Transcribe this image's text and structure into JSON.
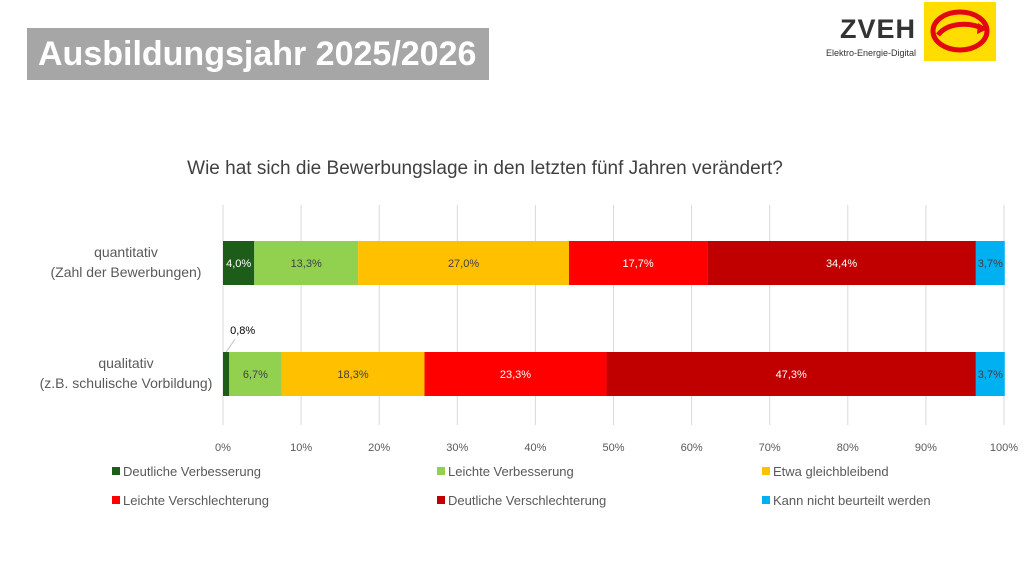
{
  "slide": {
    "title": "Ausbildungsjahr 2025/2026"
  },
  "logo": {
    "name": "ZVEH",
    "tagline": "Elektro-Energie-Digital",
    "accent": "#e30613",
    "background": "#ffdd00"
  },
  "chart_data": {
    "type": "stacked-bar-horizontal",
    "title": "Wie hat sich die Bewerbungslage in den letzten fünf Jahren verändert?",
    "xlim": [
      0,
      100
    ],
    "x_ticks": [
      "0%",
      "10%",
      "20%",
      "30%",
      "40%",
      "50%",
      "60%",
      "70%",
      "80%",
      "90%",
      "100%"
    ],
    "grid": true,
    "legend_position": "bottom",
    "categories": [
      {
        "line1": "quantitativ",
        "line2": "(Zahl der Bewerbungen)"
      },
      {
        "line1": "qualitativ",
        "line2": "(z.B. schulische Vorbildung)"
      }
    ],
    "series": [
      {
        "name": "Deutliche Verbesserung",
        "color": "#1e5c1a",
        "label_color": "#ffffff",
        "values": [
          4.0,
          0.8
        ],
        "labels": [
          "4,0%",
          "0,8%"
        ]
      },
      {
        "name": "Leichte Verbesserung",
        "color": "#92d050",
        "label_color": "#404040",
        "values": [
          13.3,
          6.7
        ],
        "labels": [
          "13,3%",
          "6,7%"
        ]
      },
      {
        "name": "Etwa gleichbleibend",
        "color": "#ffc000",
        "label_color": "#404040",
        "values": [
          27.0,
          18.3
        ],
        "labels": [
          "27,0%",
          "18,3%"
        ]
      },
      {
        "name": "Leichte Verschlechterung",
        "color": "#ff0000",
        "label_color": "#ffffff",
        "values": [
          17.7,
          23.3
        ],
        "labels": [
          "17,7%",
          "23,3%"
        ]
      },
      {
        "name": "Deutliche Verschlechterung",
        "color": "#c00000",
        "label_color": "#ffffff",
        "values": [
          34.4,
          47.3
        ],
        "labels": [
          "34,4%",
          "47,3%"
        ]
      },
      {
        "name": "Kann nicht beurteilt werden",
        "color": "#00b0f0",
        "label_color": "#404040",
        "values": [
          3.7,
          3.7
        ],
        "labels": [
          "3,7%",
          "3,7%"
        ]
      }
    ]
  }
}
